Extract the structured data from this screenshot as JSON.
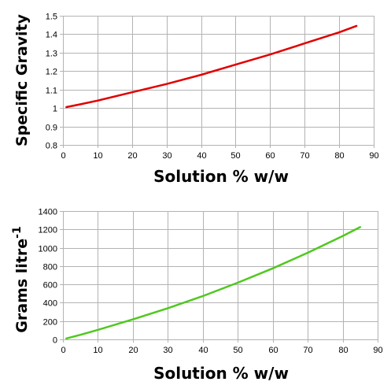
{
  "chart_data": [
    {
      "type": "line",
      "xlabel": "Solution % w/w",
      "ylabel": "Specific Gravity",
      "xlim": [
        0,
        90
      ],
      "ylim": [
        0.8,
        1.5
      ],
      "xticks": [
        "0",
        "10",
        "20",
        "30",
        "40",
        "50",
        "60",
        "70",
        "80",
        "90"
      ],
      "yticks": [
        "0.8",
        "0.9",
        "1",
        "1.1",
        "1.2",
        "1.3",
        "1.4",
        "1.5"
      ],
      "grid": true,
      "color": "#e00000",
      "series": [
        {
          "x": [
            1,
            5,
            10,
            20,
            30,
            40,
            50,
            60,
            70,
            80,
            85
          ],
          "values": [
            1.005,
            1.02,
            1.04,
            1.085,
            1.13,
            1.18,
            1.235,
            1.29,
            1.35,
            1.41,
            1.445
          ]
        }
      ]
    },
    {
      "type": "line",
      "xlabel": "Solution % w/w",
      "ylabel": "Grams litre",
      "ylabel_sup": "-1",
      "xlim": [
        0,
        90
      ],
      "ylim": [
        0,
        1400
      ],
      "xticks": [
        "0",
        "10",
        "20",
        "30",
        "40",
        "50",
        "60",
        "70",
        "80",
        "90"
      ],
      "yticks": [
        "0",
        "200",
        "400",
        "600",
        "800",
        "1000",
        "1200",
        "1400"
      ],
      "grid": true,
      "color": "#4fc81e",
      "series": [
        {
          "x": [
            1,
            5,
            10,
            20,
            30,
            40,
            50,
            60,
            70,
            80,
            85
          ],
          "values": [
            10,
            50,
            104,
            218,
            340,
            472,
            618,
            775,
            945,
            1128,
            1225
          ]
        }
      ]
    }
  ]
}
